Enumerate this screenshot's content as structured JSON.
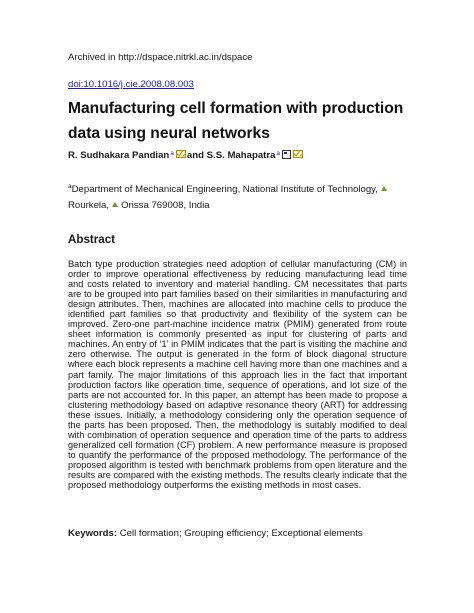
{
  "header": {
    "archived": "Archived in http://dspace.nitrkl.ac.in/dspace",
    "doi": "doi:10.1016/j.cie.2008.08.003"
  },
  "paper": {
    "title": "Manufacturing cell formation with production data using neural networks",
    "authors": {
      "author1": "R. Sudhakara Pandian",
      "author1_sup": "a",
      "connector": "and S.S. Mahapatra",
      "author2_sup": "a"
    },
    "affiliation": {
      "sup": "a",
      "line1": "Department of Mechanical Engineering, National Institute of Technology,",
      "line2_city": "Rourkela,",
      "line2_rest": "Orissa 769008, India"
    },
    "abstract": {
      "heading": "Abstract",
      "body": "Batch type production strategies need adoption of cellular manufacturing (CM) in order to improve operational effectiveness by reducing manufacturing lead time and costs related to inventory and material handling. CM necessitates that parts are to be grouped into part families based on their similarities in manufacturing and design attributes. Then, machines are allocated into machine cells to produce the identified part families so that productivity and flexibility of the system can be improved. Zero-one part-machine incidence matrix (PMIM) generated from route sheet information is commonly presented as input for clustering of parts and machines. An entry of ‘1’ in PMIM indicates that the part is visiting the machine and zero otherwise. The output is generated in the form of block diagonal structure where each block represents a machine cell having more than one machines and a part family. The major limitations of this approach lies in the fact that important production factors like operation time, sequence of operations, and lot size of the parts are not accounted for. In this paper, an attempt has been made to propose a clustering methodology based on adaptive resonance theory (ART) for addressing these issues. Initially, a methodology considering only the operation sequence of the parts has been proposed. Then, the methodology is suitably modified to deal with combination of operation sequence and operation time of the parts to address generalized cell formation (CF) problem. A new performance measure is proposed to quantify the performance of the proposed methodology. The performance of the proposed algorithm is tested with benchmark problems from open literature and the results are compared with the existing methods. The results clearly indicate that the proposed methodology outperforms the existing methods in most cases."
    },
    "keywords": {
      "label": "Keywords:",
      "value": "Cell formation; Grouping efficiency; Exceptional elements"
    }
  },
  "icons": {
    "email": "email-icon",
    "phone": "phone-icon",
    "location": "location-arrow-icon",
    "colors": {
      "link": "#1a1acc",
      "email": "#c08a00",
      "arrow": "#6a9a2a"
    }
  }
}
